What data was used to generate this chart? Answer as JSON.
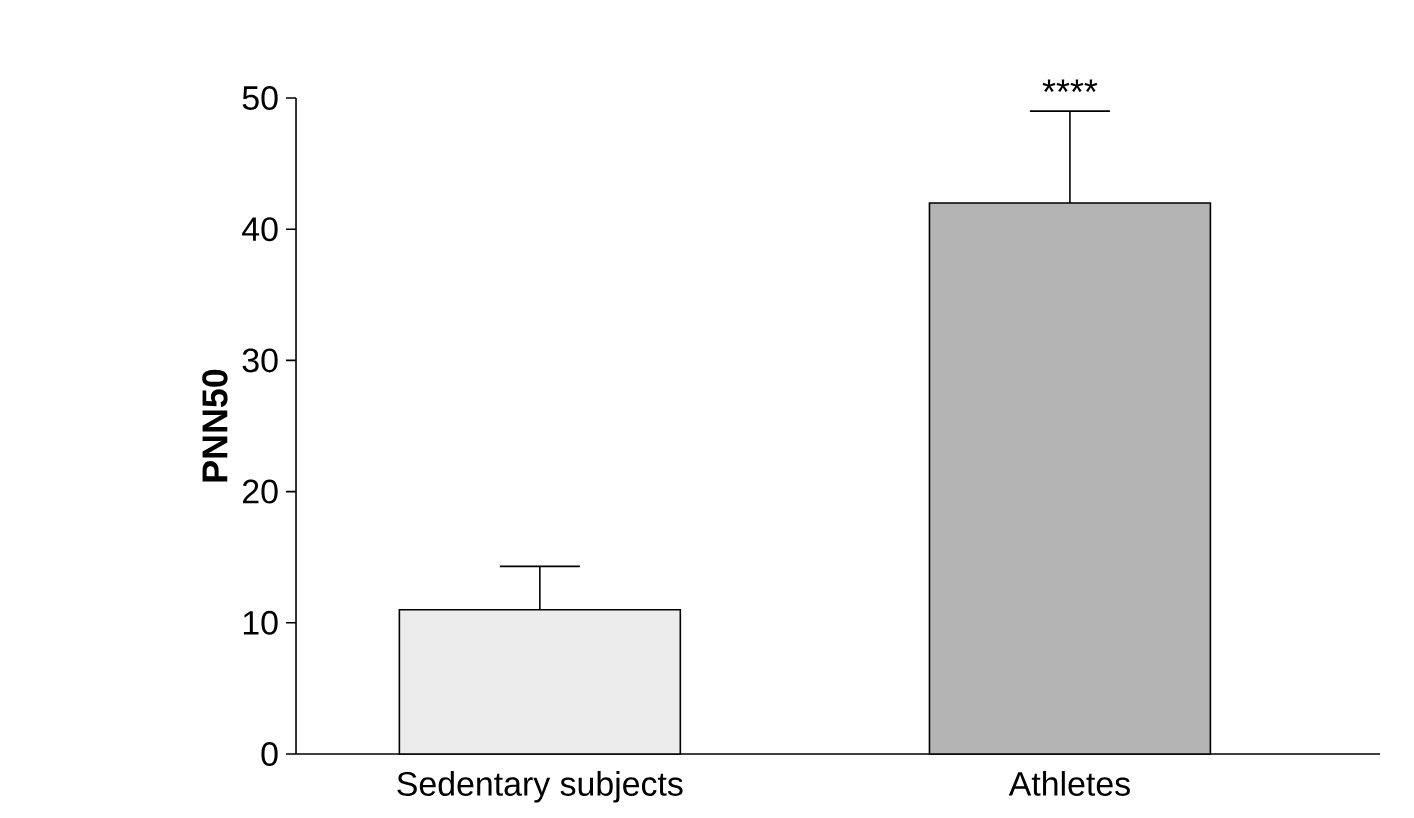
{
  "chart_data": {
    "type": "bar",
    "ylabel": "PNN50",
    "categories": [
      "Sedentary subjects",
      "Athletes"
    ],
    "values": [
      11,
      42
    ],
    "errors": [
      3.3,
      7
    ],
    "colors": [
      "#ececec",
      "#b4b4b4"
    ],
    "ylim": [
      0,
      50
    ],
    "yticks": [
      0,
      10,
      20,
      30,
      40,
      50
    ],
    "annotations": [
      {
        "text": "****",
        "x": "Athletes",
        "y": 49
      }
    ]
  }
}
